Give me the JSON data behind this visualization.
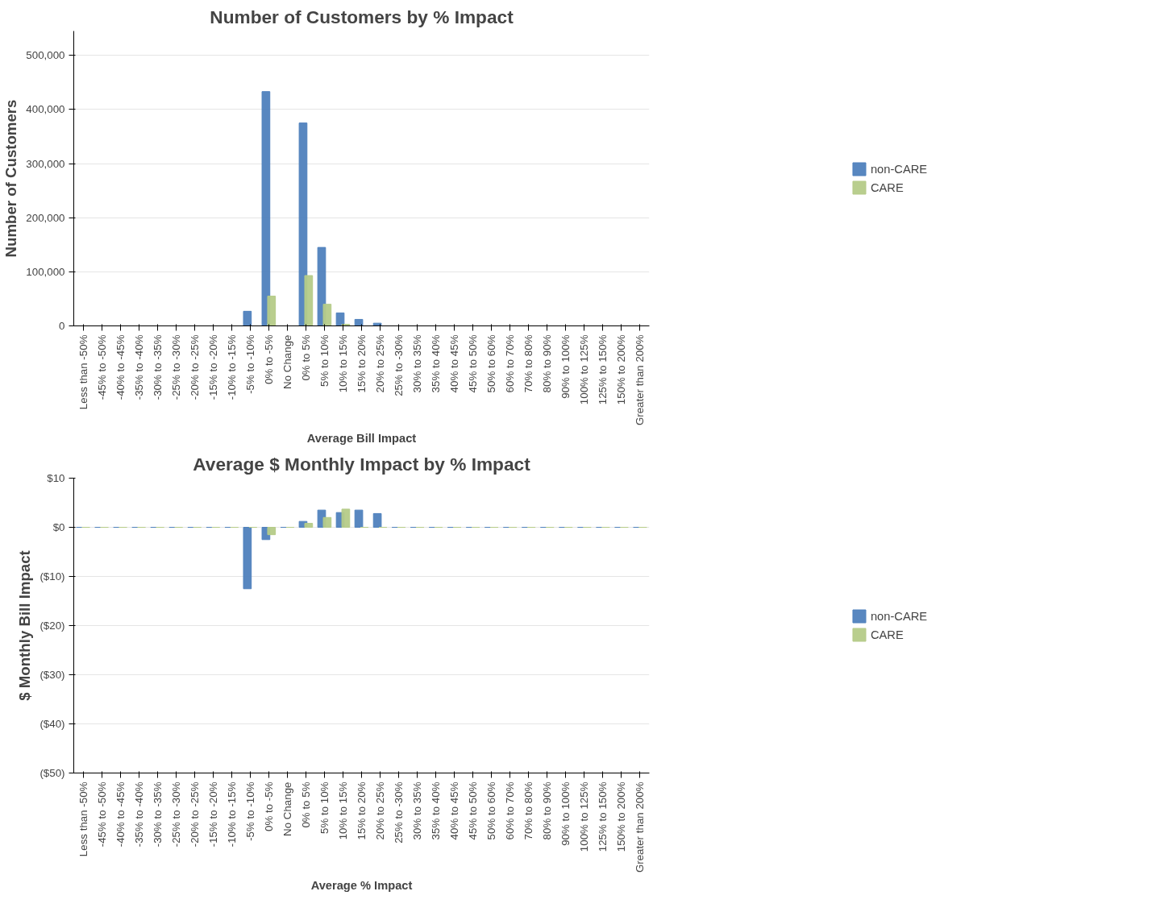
{
  "chart_data": [
    {
      "type": "bar",
      "title": "Number of Customers by % Impact",
      "xlabel": "Average Bill Impact",
      "ylabel": "Number of Customers",
      "categories": [
        "Less than -50%",
        "-45% to -50%",
        "-40% to -45%",
        "-35% to -40%",
        "-30% to -35%",
        "-25% to -30%",
        "-20% to -25%",
        "-15% to -20%",
        "-10% to -15%",
        "-5% to -10%",
        "0% to -5%",
        "No Change",
        "0% to 5%",
        "5% to 10%",
        "10% to 15%",
        "15% to 20%",
        "20% to 25%",
        "25% to -30%",
        "30% to 35%",
        "35% to 40%",
        "40% to 45%",
        "45% to 50%",
        "50% to 60%",
        "60% to 70%",
        "70% to 80%",
        "80% to 90%",
        "90% to 100%",
        "100% to 125%",
        "125% to 150%",
        "150% to 200%",
        "Greater than 200%"
      ],
      "series": [
        {
          "name": "non-CARE",
          "color": "#4f81bd",
          "values": [
            0,
            0,
            0,
            0,
            0,
            0,
            0,
            0,
            0,
            27000,
            433000,
            0,
            375000,
            145000,
            24000,
            12000,
            5000,
            0,
            0,
            0,
            0,
            0,
            0,
            0,
            0,
            0,
            0,
            0,
            0,
            0,
            0
          ]
        },
        {
          "name": "CARE",
          "color": "#b5cb88",
          "values": [
            0,
            0,
            0,
            0,
            0,
            0,
            0,
            0,
            0,
            0,
            55000,
            0,
            93000,
            40000,
            3000,
            0,
            0,
            0,
            0,
            0,
            0,
            0,
            0,
            0,
            0,
            0,
            0,
            0,
            0,
            0,
            0
          ]
        }
      ],
      "ylim": [
        0,
        545000
      ],
      "yticks": [
        {
          "value": 0,
          "label": "0"
        },
        {
          "value": 100000,
          "label": "100,000"
        },
        {
          "value": 200000,
          "label": "200,000"
        },
        {
          "value": 300000,
          "label": "300,000"
        },
        {
          "value": 400000,
          "label": "400,000"
        },
        {
          "value": 500000,
          "label": "500,000"
        }
      ],
      "grid": "y",
      "legend": "right"
    },
    {
      "type": "bar",
      "title": "Average $ Monthly Impact by % Impact",
      "xlabel": "Average % Impact",
      "ylabel": "$ Monthly Bill Impact",
      "categories": [
        "Less than -50%",
        "-45% to -50%",
        "-40% to -45%",
        "-35% to -40%",
        "-30% to -35%",
        "-25% to -30%",
        "-20% to -25%",
        "-15% to -20%",
        "-10% to -15%",
        "-5% to -10%",
        "0% to -5%",
        "No Change",
        "0% to 5%",
        "5% to 10%",
        "10% to 15%",
        "15% to 20%",
        "20% to 25%",
        "25% to -30%",
        "30% to 35%",
        "35% to 40%",
        "40% to 45%",
        "45% to 50%",
        "50% to 60%",
        "60% to 70%",
        "70% to 80%",
        "80% to 90%",
        "90% to 100%",
        "100% to 125%",
        "125% to 150%",
        "150% to 200%",
        "Greater than 200%"
      ],
      "series": [
        {
          "name": "non-CARE",
          "color": "#4f81bd",
          "values": [
            0,
            0,
            0,
            0,
            0,
            0,
            0,
            0,
            0,
            -12.5,
            -2.5,
            0,
            1.2,
            3.5,
            3,
            3.5,
            2.8,
            0,
            0,
            0,
            0,
            0,
            0,
            0,
            0,
            0,
            0,
            0,
            0,
            0,
            0
          ]
        },
        {
          "name": "CARE",
          "color": "#b5cb88",
          "values": [
            0,
            0,
            0,
            0,
            0,
            0,
            0,
            0,
            0,
            0,
            -1.5,
            0,
            0.8,
            2,
            3.7,
            0,
            0,
            0,
            0,
            0,
            0,
            0,
            0,
            0,
            0,
            0,
            0,
            0,
            0,
            0,
            0
          ]
        }
      ],
      "ylim": [
        -50,
        10
      ],
      "yticks": [
        {
          "value": 10,
          "label": "$10"
        },
        {
          "value": 0,
          "label": "$0"
        },
        {
          "value": -10,
          "label": "($10)"
        },
        {
          "value": -20,
          "label": "($20)"
        },
        {
          "value": -30,
          "label": "($30)"
        },
        {
          "value": -40,
          "label": "($40)"
        },
        {
          "value": -50,
          "label": "($50)"
        }
      ],
      "grid": "y",
      "legend": "right"
    }
  ]
}
